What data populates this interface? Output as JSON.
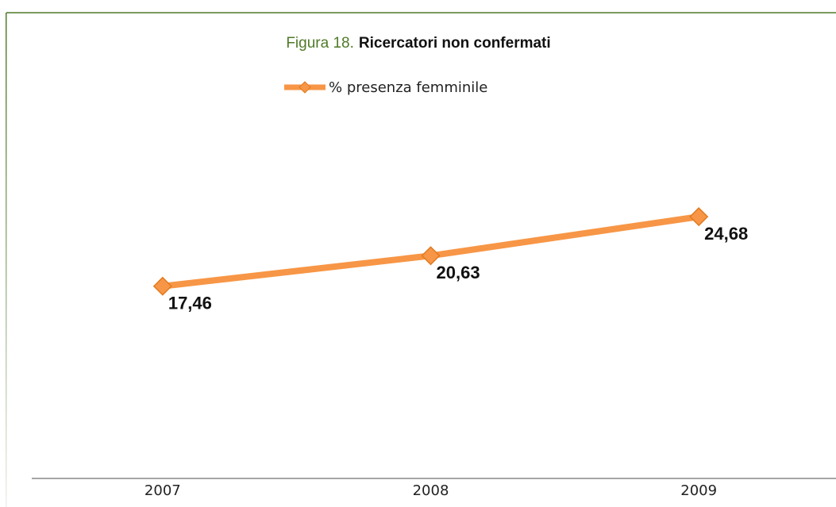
{
  "chart_data": {
    "type": "line",
    "figure_label": "Figura 18.",
    "title": "Ricercatori non confermati",
    "categories": [
      "2007",
      "2008",
      "2009"
    ],
    "series": [
      {
        "name": "% presenza femminile",
        "color": "#f79646",
        "values": [
          17.46,
          20.63,
          24.68
        ],
        "value_labels": [
          "17,46",
          "20,63",
          "24,68"
        ]
      }
    ],
    "ylim": [
      -2.5,
      34
    ],
    "legend": "top"
  }
}
